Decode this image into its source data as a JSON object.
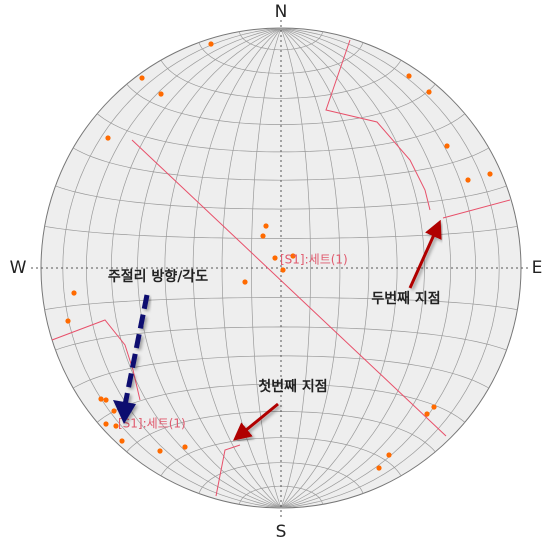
{
  "compass": {
    "north": "N",
    "south": "S",
    "east": "E",
    "west": "W"
  },
  "annotations": {
    "joint_direction": "주절리 방향/각도",
    "first_point": "첫번째 지점",
    "second_point": "두번째 지점"
  },
  "set_labels": [
    "[S1]:세트(1)",
    "[S1]:세트(1)"
  ]
}
